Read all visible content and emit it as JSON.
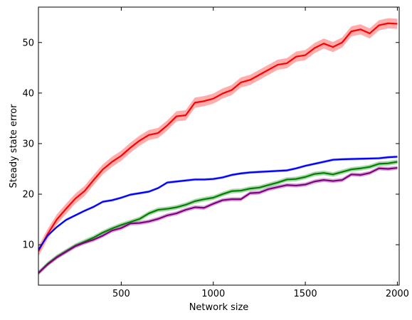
{
  "chart_data": {
    "type": "line",
    "title": "",
    "xlabel": "Network size",
    "ylabel": "Steady state error",
    "xlim": [
      50,
      2010
    ],
    "ylim": [
      2,
      57
    ],
    "xticks": [
      500,
      1000,
      1500,
      2000
    ],
    "yticks": [
      10,
      20,
      30,
      40,
      50
    ],
    "grid": false,
    "legend": "none",
    "series": [
      {
        "color": "#ff0000",
        "band_color": "#ff8080",
        "band": 1.0,
        "x": [
          50,
          100,
          150,
          200,
          250,
          300,
          350,
          400,
          450,
          500,
          550,
          600,
          650,
          700,
          750,
          800,
          850,
          900,
          950,
          1000,
          1050,
          1100,
          1150,
          1200,
          1250,
          1300,
          1350,
          1400,
          1450,
          1500,
          1550,
          1600,
          1650,
          1700,
          1750,
          1800,
          1850,
          1900,
          1950,
          2000
        ],
        "y": [
          8.7,
          12.1,
          15.0,
          17.1,
          19.1,
          20.6,
          22.8,
          24.9,
          26.4,
          27.6,
          29.2,
          30.6,
          31.7,
          32.1,
          33.6,
          35.4,
          35.6,
          38.1,
          38.4,
          38.9,
          39.9,
          40.6,
          42.1,
          42.6,
          43.6,
          44.6,
          45.6,
          45.9,
          47.2,
          47.5,
          48.9,
          49.8,
          49.1,
          50.0,
          52.2,
          52.6,
          51.8,
          53.4,
          53.8,
          53.7
        ]
      },
      {
        "color": "#0000ff",
        "band_color": "#8080ff",
        "band": 0.25,
        "x": [
          50,
          100,
          150,
          200,
          250,
          300,
          350,
          400,
          450,
          500,
          550,
          600,
          650,
          700,
          750,
          800,
          850,
          900,
          950,
          1000,
          1050,
          1100,
          1150,
          1200,
          1250,
          1300,
          1350,
          1400,
          1450,
          1500,
          1550,
          1600,
          1650,
          1700,
          1750,
          1800,
          1850,
          1900,
          1950,
          2000
        ],
        "y": [
          9.0,
          11.8,
          13.5,
          14.9,
          15.8,
          16.7,
          17.5,
          18.5,
          18.8,
          19.3,
          19.9,
          20.2,
          20.5,
          21.2,
          22.3,
          22.5,
          22.7,
          22.9,
          22.9,
          23.0,
          23.3,
          23.8,
          24.1,
          24.3,
          24.4,
          24.5,
          24.6,
          24.7,
          25.1,
          25.6,
          26.0,
          26.4,
          26.8,
          26.9,
          26.95,
          27.0,
          27.05,
          27.1,
          27.3,
          27.4
        ]
      },
      {
        "color": "#008000",
        "band_color": "#80c080",
        "band": 0.45,
        "x": [
          50,
          100,
          150,
          200,
          250,
          300,
          350,
          400,
          450,
          500,
          550,
          600,
          650,
          700,
          750,
          800,
          850,
          900,
          950,
          1000,
          1050,
          1100,
          1150,
          1200,
          1250,
          1300,
          1350,
          1400,
          1450,
          1500,
          1550,
          1600,
          1650,
          1700,
          1750,
          1800,
          1850,
          1900,
          1950,
          2000
        ],
        "y": [
          4.4,
          6.2,
          7.6,
          8.7,
          9.8,
          10.6,
          11.4,
          12.4,
          13.2,
          13.9,
          14.5,
          15.1,
          16.2,
          16.9,
          17.1,
          17.4,
          17.9,
          18.6,
          19.0,
          19.3,
          20.0,
          20.6,
          20.7,
          21.1,
          21.3,
          21.8,
          22.3,
          22.9,
          23.0,
          23.4,
          24.0,
          24.2,
          23.9,
          24.4,
          24.9,
          25.1,
          25.4,
          26.0,
          26.1,
          26.4
        ]
      },
      {
        "color": "#800080",
        "band_color": "#c080c0",
        "band": 0.4,
        "x": [
          50,
          100,
          150,
          200,
          250,
          300,
          350,
          400,
          450,
          500,
          550,
          600,
          650,
          700,
          750,
          800,
          850,
          900,
          950,
          1000,
          1050,
          1100,
          1150,
          1200,
          1250,
          1300,
          1350,
          1400,
          1450,
          1500,
          1550,
          1600,
          1650,
          1700,
          1750,
          1800,
          1850,
          1900,
          1950,
          2000
        ],
        "y": [
          4.4,
          6.1,
          7.5,
          8.6,
          9.7,
          10.4,
          11.0,
          11.8,
          12.8,
          13.3,
          14.2,
          14.3,
          14.6,
          15.1,
          15.8,
          16.2,
          16.9,
          17.4,
          17.3,
          18.1,
          18.8,
          19.0,
          19.0,
          20.2,
          20.3,
          21.0,
          21.4,
          21.8,
          21.7,
          21.9,
          22.5,
          22.8,
          22.6,
          22.8,
          23.9,
          23.8,
          24.2,
          25.1,
          25.0,
          25.2
        ]
      }
    ]
  }
}
